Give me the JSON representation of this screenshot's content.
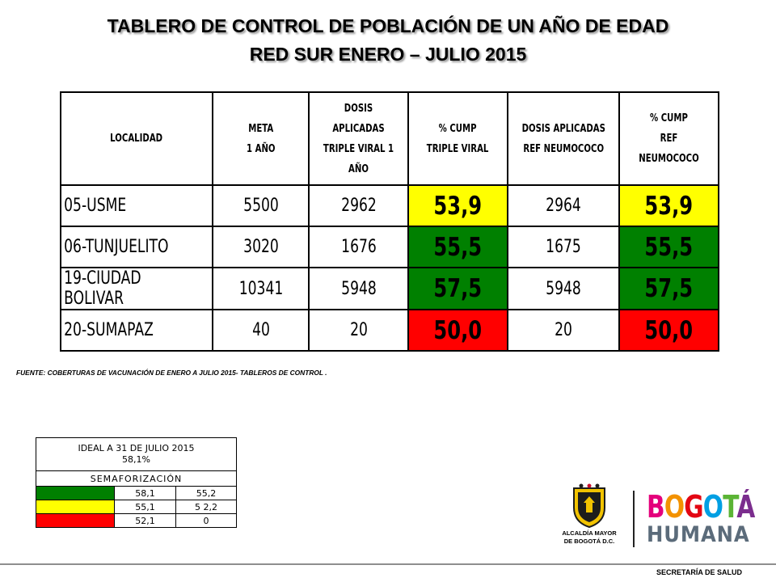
{
  "title": {
    "line1": "TABLERO DE CONTROL DE POBLACIÓN DE UN AÑO DE EDAD",
    "line2": "RED SUR  ENERO – JULIO 2015"
  },
  "table": {
    "headers": {
      "localidad": "LOCALIDAD",
      "meta_1": "META",
      "meta_2": "1 AÑO",
      "dosis_tv_1": "DOSIS APLICADAS",
      "dosis_tv_2": "TRIPLE VIRAL  1",
      "dosis_tv_3": "AÑO",
      "cump_tv_1": "% CUMP",
      "cump_tv_2": "TRIPLE VIRAL",
      "dosis_rn_1": "DOSIS APLICADAS",
      "dosis_rn_2": "REF  NEUMOCOCO",
      "cump_rn_1": "% CUMP",
      "cump_rn_2": "REF NEUMOCOCO"
    },
    "rows": [
      {
        "localidad": "05-USME",
        "meta": "5500",
        "dosis_tv": "2962",
        "cump_tv": "53,9",
        "dosis_rn": "2964",
        "cump_rn": "53,9",
        "status_color": "#ffff00"
      },
      {
        "localidad": "06-TUNJUELITO",
        "meta": "3020",
        "dosis_tv": "1676",
        "cump_tv": "55,5",
        "dosis_rn": "1675",
        "cump_rn": "55,5",
        "status_color": "#008000"
      },
      {
        "localidad": "19-CIUDAD BOLIVAR",
        "meta": "10341",
        "dosis_tv": "5948",
        "cump_tv": "57,5",
        "dosis_rn": "5948",
        "cump_rn": "57,5",
        "status_color": "#008000"
      },
      {
        "localidad": "20-SUMAPAZ",
        "meta": "40",
        "dosis_tv": "20",
        "cump_tv": "50,0",
        "dosis_rn": "20",
        "cump_rn": "50,0",
        "status_color": "#ff0000"
      }
    ]
  },
  "source_note": "FUENTE: COBERTURAS DE VACUNACIÓN DE ENERO A JULIO 2015- TABLEROS DE CONTROL .",
  "legend": {
    "ideal_line1": "IDEAL A 31 DE JULIO 2015",
    "ideal_line2": "58,1%",
    "semaforizacion": "SEMAFORIZACIÓN",
    "rows": [
      {
        "color": "#008000",
        "from": "58,1",
        "to": "55,2"
      },
      {
        "color": "#ffff00",
        "from": "55,1",
        "to": "5 2,2"
      },
      {
        "color": "#ff0000",
        "from": "52,1",
        "to": "0"
      }
    ]
  },
  "logos": {
    "alcaldia_line1": "ALCALDÍA MAYOR",
    "alcaldia_line2": "DE BOGOTÁ D.C.",
    "bogota_letters": [
      "B",
      "O",
      "G",
      "O",
      "T",
      "Á"
    ],
    "bogota_colors": [
      "#e4007c",
      "#f39200",
      "#e30613",
      "#009fe3",
      "#5bb435",
      "#7b2d8e"
    ],
    "humana": "HUMANA"
  },
  "footer": {
    "secretaria": "SECRETARÍA DE SALUD"
  }
}
